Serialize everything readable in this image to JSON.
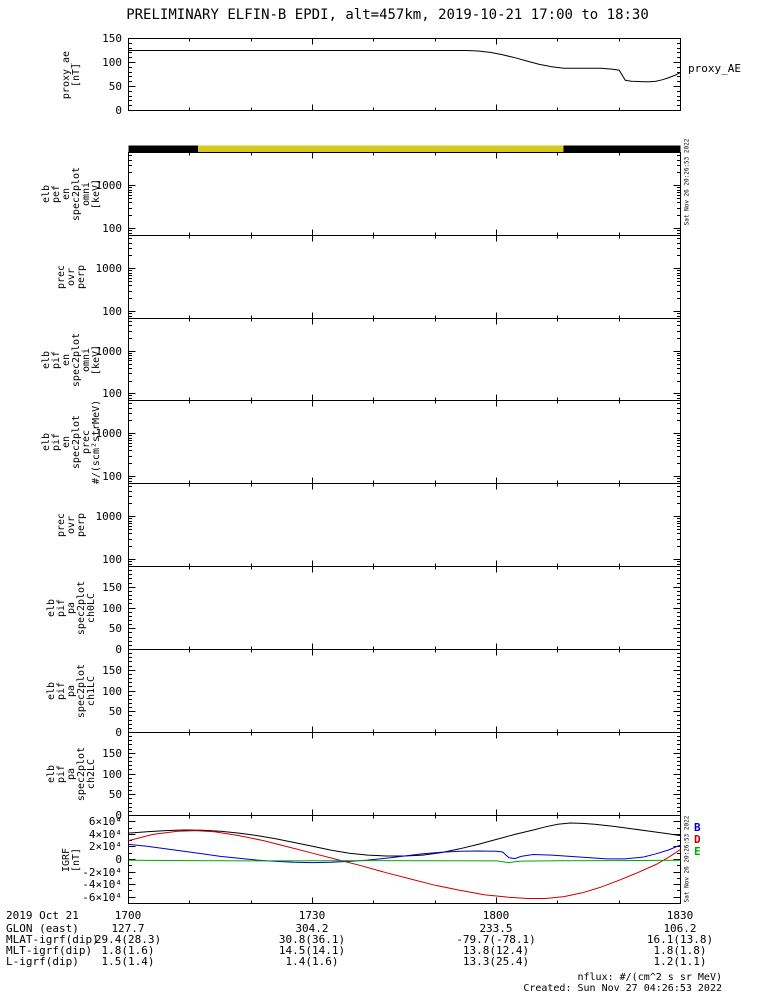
{
  "title": "PRELIMINARY ELFIN-B EPDI, alt=457km, 2019-10-21 17:00 to 18:30",
  "time_axis": {
    "duration_minutes": 90,
    "start_label": "1700",
    "tick_minutes": [
      0,
      30,
      60,
      90
    ],
    "tick_labels": [
      "1700",
      "1730",
      "1800",
      "1830"
    ]
  },
  "right_labels": {
    "proxy": "proxy_AE"
  },
  "side_timestamp": "Sat Nov 26 20:26:53 2022",
  "legend": {
    "igrf": [
      {
        "label": "B",
        "color": "#0000cc"
      },
      {
        "label": "D",
        "color": "#cc0000"
      },
      {
        "label": "E",
        "color": "#00aa00"
      }
    ]
  },
  "footer": {
    "date_label": "2019 Oct 21",
    "rows": [
      {
        "label": "GLON (east)",
        "values": [
          "127.7",
          "304.2",
          "233.5",
          "106.2"
        ]
      },
      {
        "label": "MLAT-igrf(dip)",
        "values": [
          "29.4(28.3)",
          "30.8(36.1)",
          "-79.7(-78.1)",
          "16.1(13.8)"
        ]
      },
      {
        "label": "MLT-igrf(dip)",
        "values": [
          "1.8(1.6)",
          "14.5(14.1)",
          "13.8(12.4)",
          "1.8(1.8)"
        ]
      },
      {
        "label": "L-igrf(dip)",
        "values": [
          "1.5(1.4)",
          "1.4(1.6)",
          "13.3(25.4)",
          "1.2(1.1)"
        ]
      }
    ],
    "nflux": "nflux: #/(cm^2 s sr MeV)",
    "created": "Created: Sun Nov 27 04:26:53 2022"
  },
  "chart_data": [
    {
      "id": "proxy_ae",
      "type": "line",
      "scale": "linear",
      "ylabel_lines": [
        "proxy_ae",
        "[nT]"
      ],
      "ylim": [
        0,
        150
      ],
      "yticks": [
        0,
        50,
        100,
        150
      ],
      "ytick_labels": [
        "0",
        "50",
        "100",
        "150"
      ],
      "yminor_step": 10,
      "series": [
        {
          "name": "proxy_AE",
          "color": "#000000",
          "points": [
            [
              0,
              125
            ],
            [
              10,
              125
            ],
            [
              20,
              125
            ],
            [
              30,
              125
            ],
            [
              40,
              125
            ],
            [
              50,
              125
            ],
            [
              55,
              125
            ],
            [
              57,
              124
            ],
            [
              59,
              121
            ],
            [
              61,
              116
            ],
            [
              63,
              110
            ],
            [
              65,
              103
            ],
            [
              67,
              96
            ],
            [
              69,
              91
            ],
            [
              71,
              88
            ],
            [
              74,
              88
            ],
            [
              77,
              88
            ],
            [
              79,
              86
            ],
            [
              80,
              84
            ],
            [
              81,
              63
            ],
            [
              82,
              61
            ],
            [
              84,
              60
            ],
            [
              85,
              60
            ],
            [
              86,
              61
            ],
            [
              87,
              64
            ],
            [
              88,
              68
            ],
            [
              89,
              73
            ],
            [
              90,
              79
            ]
          ]
        }
      ]
    },
    {
      "id": "fast_bar",
      "type": "segments",
      "segments": [
        {
          "start_min": 0,
          "end_min": 11.3,
          "color": "#000000"
        },
        {
          "start_min": 11.3,
          "end_min": 70.9,
          "color": "#d8c71c"
        },
        {
          "start_min": 70.9,
          "end_min": 90,
          "color": "#000000"
        }
      ]
    },
    {
      "id": "pef_en_omni",
      "type": "spec",
      "scale": "log",
      "ylabel_lines": [
        "elb",
        "pef",
        "en",
        "spec2plot",
        "omni",
        "[keV]"
      ],
      "ylim": [
        70,
        6000
      ],
      "yticks": [
        100,
        1000
      ],
      "ytick_labels": [
        "100",
        "1000"
      ],
      "series": [],
      "note": "blank panel - no spectrogram data rendered"
    },
    {
      "id": "prec_ovr_perp_a",
      "type": "spec",
      "scale": "log",
      "ylabel_lines": [
        "prec",
        "ovr",
        "perp"
      ],
      "ylim": [
        70,
        6000
      ],
      "yticks": [
        100,
        1000
      ],
      "ytick_labels": [
        "100",
        "1000"
      ],
      "series": [],
      "note": "blank panel - no spectrogram data rendered"
    },
    {
      "id": "pif_en_omni",
      "type": "spec",
      "scale": "log",
      "ylabel_lines": [
        "elb",
        "pif",
        "en",
        "spec2plot",
        "omni",
        "[keV]"
      ],
      "ylim": [
        70,
        6000
      ],
      "yticks": [
        100,
        1000
      ],
      "ytick_labels": [
        "100",
        "1000"
      ],
      "series": [],
      "note": "blank panel - no spectrogram data rendered"
    },
    {
      "id": "pif_en_prec",
      "type": "spec",
      "scale": "log",
      "ylabel_lines": [
        "elb",
        "pif",
        "en",
        "spec2plot",
        "prec",
        "#/(scm²strMeV)"
      ],
      "ylim": [
        70,
        6000
      ],
      "yticks": [
        100,
        1000
      ],
      "ytick_labels": [
        "100",
        "1000"
      ],
      "series": [],
      "note": "blank panel - no spectrogram data rendered"
    },
    {
      "id": "prec_ovr_perp_b",
      "type": "spec",
      "scale": "log",
      "ylabel_lines": [
        "prec",
        "ovr",
        "perp"
      ],
      "ylim": [
        70,
        6000
      ],
      "yticks": [
        100,
        1000
      ],
      "ytick_labels": [
        "100",
        "1000"
      ],
      "series": [],
      "note": "blank panel - no spectrogram data rendered"
    },
    {
      "id": "pa_ch0lc",
      "type": "spec",
      "scale": "linear",
      "ylabel_lines": [
        "elb",
        "pif",
        "pa",
        "spec2plot",
        "ch0LC"
      ],
      "ylim": [
        0,
        200
      ],
      "yticks": [
        0,
        50,
        100,
        150
      ],
      "ytick_labels": [
        "0",
        "50",
        "100",
        "150"
      ],
      "yminor_step": 10,
      "series": [],
      "note": "blank panel - no pitch-angle data rendered"
    },
    {
      "id": "pa_ch1lc",
      "type": "spec",
      "scale": "linear",
      "ylabel_lines": [
        "elb",
        "pif",
        "pa",
        "spec2plot",
        "ch1LC"
      ],
      "ylim": [
        0,
        200
      ],
      "yticks": [
        0,
        50,
        100,
        150
      ],
      "ytick_labels": [
        "0",
        "50",
        "100",
        "150"
      ],
      "yminor_step": 10,
      "series": [],
      "note": "blank panel - no pitch-angle data rendered"
    },
    {
      "id": "pa_ch2lc",
      "type": "spec",
      "scale": "linear",
      "ylabel_lines": [
        "elb",
        "pif",
        "pa",
        "spec2plot",
        "ch2LC"
      ],
      "ylim": [
        0,
        200
      ],
      "yticks": [
        0,
        50,
        100,
        150
      ],
      "ytick_labels": [
        "0",
        "50",
        "100",
        "150"
      ],
      "yminor_step": 10,
      "series": [],
      "note": "blank panel - no pitch-angle data rendered"
    },
    {
      "id": "igrf",
      "type": "line",
      "scale": "linear",
      "ylabel_lines": [
        "IGRF",
        "[nT]"
      ],
      "ylim": [
        -70000,
        70000
      ],
      "yticks": [
        -60000,
        -40000,
        -20000,
        0,
        20000,
        40000,
        60000
      ],
      "ytick_labels": [
        "-6×10⁴",
        "-4×10⁴",
        "-2×10⁴",
        "0",
        "2×10⁴",
        "4×10⁴",
        "6×10⁴"
      ],
      "yminor_step": 10000,
      "series": [
        {
          "name": "Bt",
          "color": "#000000",
          "points": [
            [
              0,
              42000
            ],
            [
              3,
              44000
            ],
            [
              6,
              46000
            ],
            [
              9,
              47000
            ],
            [
              12,
              46500
            ],
            [
              15,
              45000
            ],
            [
              18,
              42000
            ],
            [
              21,
              38000
            ],
            [
              24,
              33000
            ],
            [
              27,
              27000
            ],
            [
              30,
              21000
            ],
            [
              33,
              15000
            ],
            [
              36,
              10000
            ],
            [
              39,
              7000
            ],
            [
              42,
              5500
            ],
            [
              45,
              5500
            ],
            [
              48,
              7000
            ],
            [
              51,
              11000
            ],
            [
              54,
              17000
            ],
            [
              57,
              24000
            ],
            [
              60,
              32000
            ],
            [
              63,
              40000
            ],
            [
              66,
              47000
            ],
            [
              68,
              52000
            ],
            [
              70,
              56000
            ],
            [
              72,
              58000
            ],
            [
              74,
              57500
            ],
            [
              76,
              56000
            ],
            [
              79,
              53000
            ],
            [
              82,
              49000
            ],
            [
              85,
              45000
            ],
            [
              88,
              41000
            ],
            [
              90,
              38000
            ]
          ]
        },
        {
          "name": "B",
          "color": "#0000cc",
          "points": [
            [
              0,
              24000
            ],
            [
              3,
              21000
            ],
            [
              6,
              17000
            ],
            [
              9,
              13000
            ],
            [
              12,
              9000
            ],
            [
              15,
              5000
            ],
            [
              18,
              2000
            ],
            [
              21,
              -1000
            ],
            [
              24,
              -3000
            ],
            [
              27,
              -4500
            ],
            [
              30,
              -5000
            ],
            [
              33,
              -4500
            ],
            [
              36,
              -3000
            ],
            [
              39,
              -1000
            ],
            [
              42,
              2000
            ],
            [
              45,
              5500
            ],
            [
              48,
              9000
            ],
            [
              51,
              11500
            ],
            [
              54,
              13000
            ],
            [
              57,
              13500
            ],
            [
              60,
              13000
            ],
            [
              61,
              12000
            ],
            [
              62,
              3000
            ],
            [
              63,
              1500
            ],
            [
              64,
              5000
            ],
            [
              66,
              8000
            ],
            [
              69,
              7000
            ],
            [
              72,
              5000
            ],
            [
              75,
              3000
            ],
            [
              78,
              1000
            ],
            [
              81,
              1000
            ],
            [
              84,
              4000
            ],
            [
              86,
              9000
            ],
            [
              88,
              15000
            ],
            [
              90,
              23000
            ]
          ]
        },
        {
          "name": "D",
          "color": "#cc0000",
          "points": [
            [
              0,
              30000
            ],
            [
              4,
              40000
            ],
            [
              8,
              45000
            ],
            [
              11,
              46000
            ],
            [
              14,
              44000
            ],
            [
              18,
              38000
            ],
            [
              22,
              30000
            ],
            [
              26,
              20000
            ],
            [
              30,
              10000
            ],
            [
              34,
              0
            ],
            [
              38,
              -10000
            ],
            [
              42,
              -21000
            ],
            [
              46,
              -31000
            ],
            [
              50,
              -41000
            ],
            [
              54,
              -49000
            ],
            [
              58,
              -56000
            ],
            [
              62,
              -60000
            ],
            [
              65,
              -62000
            ],
            [
              68,
              -62000
            ],
            [
              71,
              -59000
            ],
            [
              74,
              -53000
            ],
            [
              77,
              -44000
            ],
            [
              80,
              -33000
            ],
            [
              83,
              -21000
            ],
            [
              86,
              -8000
            ],
            [
              88,
              3000
            ],
            [
              90,
              16000
            ]
          ]
        },
        {
          "name": "E",
          "color": "#00aa00",
          "points": [
            [
              0,
              -1200
            ],
            [
              10,
              -1800
            ],
            [
              20,
              -2200
            ],
            [
              30,
              -2000
            ],
            [
              40,
              -1800
            ],
            [
              50,
              -2000
            ],
            [
              60,
              -2200
            ],
            [
              61,
              -3500
            ],
            [
              62,
              -5000
            ],
            [
              63,
              -3500
            ],
            [
              64,
              -2500
            ],
            [
              70,
              -2000
            ],
            [
              80,
              -1800
            ],
            [
              90,
              -1200
            ]
          ]
        }
      ]
    }
  ]
}
